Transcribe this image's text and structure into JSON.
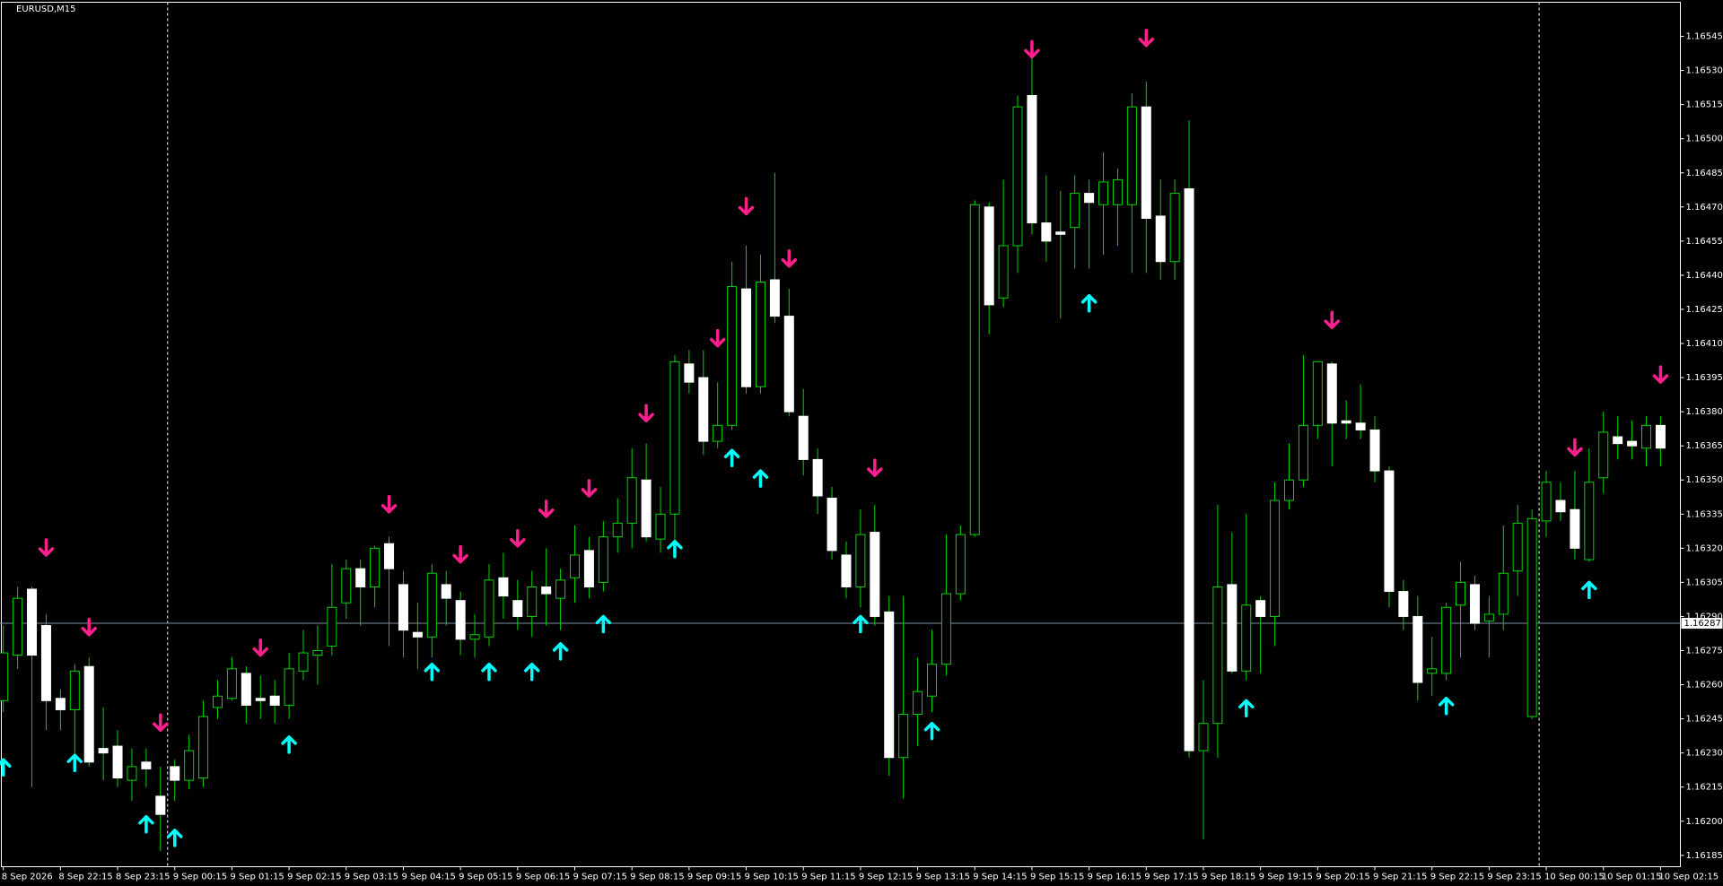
{
  "chart_data": {
    "type": "candlestick",
    "title": "EURUSD,M15",
    "categories": [
      "8 Sep 2026",
      null,
      null,
      null,
      "8 Sep 22:15",
      null,
      null,
      null,
      "8 Sep 23:15",
      null,
      null,
      null,
      "9 Sep 00:15",
      null,
      null,
      null,
      "9 Sep 01:15",
      null,
      null,
      null,
      "9 Sep 02:15",
      null,
      null,
      null,
      "9 Sep 03:15",
      null,
      null,
      null,
      "9 Sep 04:15",
      null,
      null,
      null,
      "9 Sep 05:15",
      null,
      null,
      null,
      "9 Sep 06:15",
      null,
      null,
      null,
      "9 Sep 07:15",
      null,
      null,
      null,
      "9 Sep 08:15",
      null,
      null,
      null,
      "9 Sep 09:15",
      null,
      null,
      null,
      "9 Sep 10:15",
      null,
      null,
      null,
      "9 Sep 11:15",
      null,
      null,
      null,
      "9 Sep 12:15",
      null,
      null,
      null,
      "9 Sep 13:15",
      null,
      null,
      null,
      "9 Sep 14:15",
      null,
      null,
      null,
      "9 Sep 15:15",
      null,
      null,
      null,
      "9 Sep 16:15",
      null,
      null,
      null,
      "9 Sep 17:15",
      null,
      null,
      null,
      "9 Sep 18:15",
      null,
      null,
      null,
      "9 Sep 19:15",
      null,
      null,
      null,
      "9 Sep 20:15",
      null,
      null,
      null,
      "9 Sep 21:15",
      null,
      null,
      null,
      "9 Sep 22:15",
      null,
      null,
      null,
      "9 Sep 23:15",
      null,
      null,
      null,
      "10 Sep 00:15",
      null,
      null,
      null,
      "10 Sep 01:15",
      null,
      null,
      null,
      "10 Sep 02:15"
    ],
    "open": [
      1.16253,
      1.16273,
      1.16302,
      1.16286,
      1.16254,
      1.16249,
      1.16268,
      1.16232,
      1.16233,
      1.16218,
      1.16226,
      1.16211,
      1.16224,
      1.16218,
      1.16219,
      1.1625,
      1.16254,
      1.16265,
      1.16254,
      1.16255,
      1.16251,
      1.16266,
      1.16273,
      1.16277,
      1.16296,
      1.16311,
      1.16303,
      1.16322,
      1.16304,
      1.16283,
      1.16281,
      1.16304,
      1.16297,
      1.1628,
      1.16281,
      1.16307,
      1.16297,
      1.1629,
      1.16303,
      1.16298,
      1.16307,
      1.16319,
      1.16305,
      1.16325,
      1.16331,
      1.1635,
      1.16324,
      1.16335,
      1.16401,
      1.16395,
      1.16367,
      1.16374,
      1.16434,
      1.16391,
      1.16438,
      1.16422,
      1.16378,
      1.16359,
      1.16342,
      1.16317,
      1.16303,
      1.16327,
      1.16292,
      1.16228,
      1.16247,
      1.16255,
      1.16269,
      1.163,
      1.16326,
      1.1647,
      1.1643,
      1.16453,
      1.16519,
      1.16463,
      1.16459,
      1.16461,
      1.16476,
      1.16471,
      1.16471,
      1.16471,
      1.16514,
      1.16466,
      1.16446,
      1.16478,
      1.16231,
      1.16243,
      1.16304,
      1.16266,
      1.16297,
      1.1629,
      1.16341,
      1.1635,
      1.16374,
      1.16401,
      1.16376,
      1.16375,
      1.16372,
      1.16354,
      1.16301,
      1.1629,
      1.16265,
      1.16265,
      1.16295,
      1.16304,
      1.16288,
      1.16291,
      1.1631,
      1.16246,
      1.16332,
      1.16341,
      1.16337,
      1.16315,
      1.16351,
      1.16369,
      1.16367,
      1.16364,
      1.16374
    ],
    "high": [
      1.16286,
      1.16303,
      1.16303,
      1.16291,
      1.16258,
      1.16269,
      1.16272,
      1.1625,
      1.1624,
      1.16232,
      1.16232,
      1.16224,
      1.16227,
      1.16238,
      1.16253,
      1.16262,
      1.16272,
      1.16268,
      1.16264,
      1.16262,
      1.16274,
      1.16284,
      1.16286,
      1.16313,
      1.16315,
      1.16315,
      1.16321,
      1.16325,
      1.1631,
      1.16296,
      1.16313,
      1.1631,
      1.16301,
      1.16291,
      1.16313,
      1.16318,
      1.16306,
      1.1631,
      1.1632,
      1.16311,
      1.1633,
      1.16325,
      1.16332,
      1.16342,
      1.16364,
      1.16366,
      1.16347,
      1.16405,
      1.16407,
      1.16407,
      1.16393,
      1.16446,
      1.16453,
      1.16449,
      1.16485,
      1.16434,
      1.1639,
      1.16364,
      1.16347,
      1.16323,
      1.16337,
      1.16339,
      1.16299,
      1.16299,
      1.16272,
      1.16284,
      1.16326,
      1.1633,
      1.16473,
      1.16472,
      1.16482,
      1.16519,
      1.16537,
      1.16484,
      1.16477,
      1.16484,
      1.16482,
      1.16494,
      1.16487,
      1.1652,
      1.16525,
      1.16482,
      1.16482,
      1.16508,
      1.16262,
      1.16339,
      1.16327,
      1.16335,
      1.16299,
      1.16349,
      1.16366,
      1.16405,
      1.16402,
      1.16402,
      1.16385,
      1.16392,
      1.16378,
      1.16356,
      1.16306,
      1.16299,
      1.16281,
      1.16296,
      1.16314,
      1.16308,
      1.16299,
      1.1633,
      1.16339,
      1.16337,
      1.16354,
      1.16349,
      1.16354,
      1.16364,
      1.1638,
      1.16378,
      1.16376,
      1.16378,
      1.16378
    ],
    "low": [
      1.16248,
      1.16267,
      1.16215,
      1.1624,
      1.1624,
      1.16228,
      1.16224,
      1.16218,
      1.16215,
      1.16209,
      1.16215,
      1.16187,
      1.16209,
      1.16214,
      1.16215,
      1.16245,
      1.16253,
      1.16243,
      1.16245,
      1.16243,
      1.16245,
      1.16262,
      1.1626,
      1.16273,
      1.16289,
      1.16286,
      1.16294,
      1.16277,
      1.16272,
      1.16267,
      1.16272,
      1.16286,
      1.16273,
      1.16272,
      1.16277,
      1.16289,
      1.16284,
      1.16281,
      1.16286,
      1.16284,
      1.16296,
      1.16298,
      1.16301,
      1.16318,
      1.1632,
      1.16323,
      1.16318,
      1.1632,
      1.16388,
      1.16361,
      1.16364,
      1.16372,
      1.16388,
      1.16388,
      1.16419,
      1.16378,
      1.16352,
      1.16335,
      1.16315,
      1.16298,
      1.16294,
      1.16286,
      1.1622,
      1.1621,
      1.16233,
      1.16248,
      1.16264,
      1.16297,
      1.16325,
      1.16414,
      1.16426,
      1.16441,
      1.16458,
      1.16446,
      1.16421,
      1.16443,
      1.16443,
      1.16449,
      1.16453,
      1.16441,
      1.16441,
      1.16438,
      1.16438,
      1.16228,
      1.16192,
      1.16228,
      1.16265,
      1.16262,
      1.16265,
      1.16277,
      1.16337,
      1.16347,
      1.16368,
      1.16356,
      1.16368,
      1.16368,
      1.16349,
      1.16294,
      1.16284,
      1.16253,
      1.16255,
      1.16262,
      1.16272,
      1.16284,
      1.16272,
      1.16284,
      1.16299,
      1.16245,
      1.16325,
      1.16332,
      1.16315,
      1.16314,
      1.16344,
      1.16359,
      1.16359,
      1.16356,
      1.16356
    ],
    "close": [
      1.16274,
      1.16298,
      1.16273,
      1.16253,
      1.16249,
      1.16266,
      1.16226,
      1.1623,
      1.16219,
      1.16224,
      1.16223,
      1.16203,
      1.16218,
      1.16231,
      1.16246,
      1.16255,
      1.16267,
      1.16251,
      1.16253,
      1.16251,
      1.16267,
      1.16274,
      1.16275,
      1.16294,
      1.16311,
      1.16303,
      1.1632,
      1.16311,
      1.16284,
      1.16281,
      1.16309,
      1.16298,
      1.1628,
      1.16282,
      1.16306,
      1.16299,
      1.1629,
      1.16303,
      1.163,
      1.16306,
      1.16317,
      1.16303,
      1.16325,
      1.16331,
      1.16351,
      1.16325,
      1.16335,
      1.16402,
      1.16393,
      1.16367,
      1.16374,
      1.16435,
      1.16391,
      1.16437,
      1.16422,
      1.1638,
      1.16359,
      1.16343,
      1.16319,
      1.16303,
      1.16326,
      1.1629,
      1.16228,
      1.16247,
      1.16257,
      1.16269,
      1.163,
      1.16326,
      1.16471,
      1.16427,
      1.16453,
      1.16514,
      1.16463,
      1.16455,
      1.16458,
      1.16476,
      1.16472,
      1.16481,
      1.16482,
      1.16514,
      1.16465,
      1.16446,
      1.16476,
      1.16231,
      1.16243,
      1.16303,
      1.16266,
      1.16295,
      1.1629,
      1.16341,
      1.1635,
      1.16374,
      1.16402,
      1.16375,
      1.16375,
      1.16372,
      1.16354,
      1.16301,
      1.1629,
      1.16261,
      1.16267,
      1.16294,
      1.16305,
      1.16287,
      1.16291,
      1.16309,
      1.16331,
      1.16333,
      1.16349,
      1.16336,
      1.1632,
      1.16349,
      1.16371,
      1.16366,
      1.16365,
      1.16374,
      1.16364
    ],
    "down_arrows": [
      null,
      null,
      null,
      1.16317,
      null,
      null,
      1.16282,
      null,
      null,
      null,
      null,
      1.1624,
      null,
      null,
      null,
      null,
      null,
      null,
      1.16273,
      null,
      null,
      null,
      null,
      null,
      null,
      null,
      null,
      1.16336,
      null,
      null,
      null,
      null,
      1.16314,
      null,
      null,
      null,
      1.16321,
      null,
      1.16334,
      null,
      null,
      1.16343,
      null,
      null,
      null,
      1.16376,
      null,
      null,
      null,
      null,
      1.16409,
      null,
      1.16467,
      null,
      null,
      1.16444,
      null,
      null,
      null,
      null,
      null,
      1.16352,
      null,
      null,
      null,
      null,
      null,
      null,
      null,
      null,
      null,
      null,
      1.16536,
      null,
      null,
      null,
      null,
      null,
      null,
      null,
      1.16541,
      null,
      null,
      null,
      null,
      null,
      null,
      null,
      null,
      null,
      null,
      null,
      null,
      1.16417,
      null,
      null,
      null,
      null,
      null,
      null,
      null,
      null,
      null,
      null,
      null,
      null,
      null,
      null,
      null,
      null,
      1.16361,
      null,
      null,
      null,
      null,
      null,
      1.16393
    ],
    "up_arrows": [
      1.16227,
      null,
      null,
      null,
      null,
      1.16229,
      null,
      null,
      null,
      null,
      1.16202,
      null,
      1.16196,
      null,
      null,
      null,
      null,
      null,
      null,
      null,
      1.16237,
      null,
      null,
      null,
      null,
      null,
      null,
      null,
      null,
      null,
      1.16269,
      null,
      null,
      null,
      1.16269,
      null,
      null,
      1.16269,
      null,
      1.16278,
      null,
      null,
      1.1629,
      null,
      null,
      null,
      null,
      1.16323,
      null,
      null,
      null,
      1.16363,
      null,
      1.16354,
      null,
      null,
      null,
      null,
      null,
      null,
      1.1629,
      null,
      null,
      null,
      null,
      1.16243,
      null,
      null,
      null,
      null,
      null,
      null,
      null,
      null,
      null,
      null,
      1.16431,
      null,
      null,
      null,
      null,
      null,
      null,
      null,
      null,
      null,
      null,
      1.16253,
      null,
      null,
      null,
      null,
      null,
      null,
      null,
      null,
      null,
      null,
      null,
      null,
      null,
      1.16254,
      null,
      null,
      null,
      null,
      null,
      null,
      null,
      null,
      null,
      1.16305,
      null,
      null,
      null,
      null,
      null
    ],
    "last_price": 1.16287,
    "ylim": [
      1.1618,
      1.1656
    ],
    "yticks": [
      1.16185,
      {
        "value": 1.162,
        "label": "1.16200"
      },
      1.16215,
      {
        "value": 1.1623,
        "label": "1.16230"
      },
      1.16245,
      {
        "value": 1.1626,
        "label": "1.16260"
      },
      1.16275,
      {
        "value": 1.1629,
        "label": "1.16290"
      },
      1.16305,
      {
        "value": 1.1632,
        "label": "1.16320"
      },
      1.16335,
      {
        "value": 1.1635,
        "label": "1.16350"
      },
      1.16365,
      {
        "value": 1.1638,
        "label": "1.16380"
      },
      1.16395,
      {
        "value": 1.1641,
        "label": "1.16410"
      },
      1.16425,
      {
        "value": 1.1644,
        "label": "1.16440"
      },
      1.16455,
      {
        "value": 1.1647,
        "label": "1.16470"
      },
      1.16485,
      {
        "value": 1.165,
        "label": "1.16500"
      },
      1.16515,
      {
        "value": 1.1653,
        "label": "1.16530"
      },
      1.16545
    ],
    "wick_color": "#00d400",
    "bull_body_color": "#000000",
    "bear_body_color": "#ffffff",
    "up_arrow_color": "#00ffff",
    "down_arrow_color": "#ff1f8e",
    "price_line_color": "#7b8fa3",
    "grid": false
  }
}
